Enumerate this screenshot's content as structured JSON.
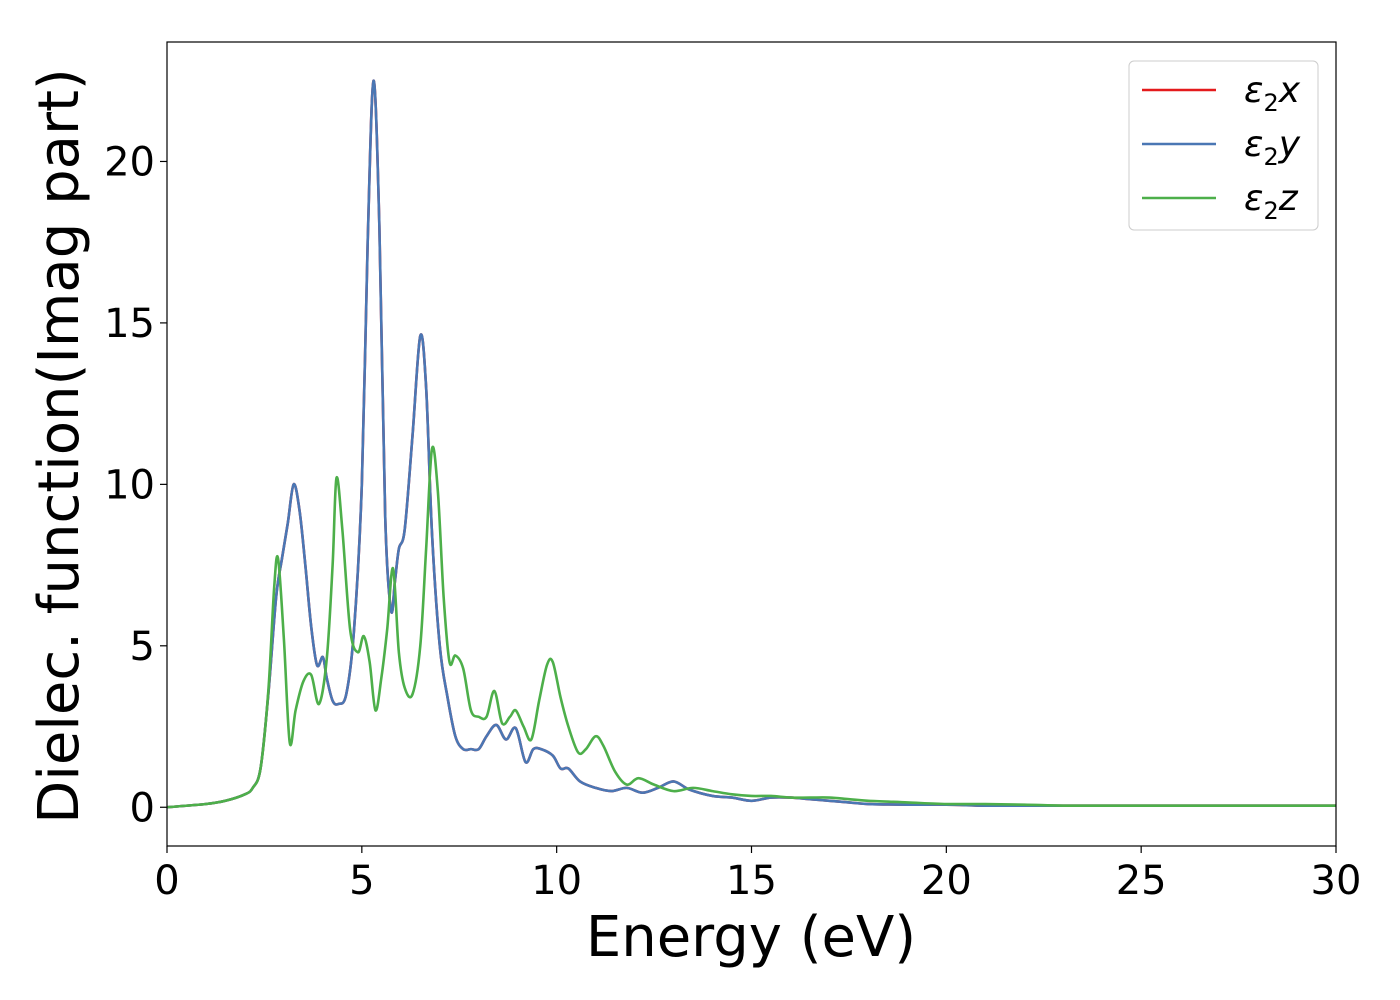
{
  "chart_data": {
    "type": "line",
    "xlabel": "Energy (eV)",
    "ylabel": "Dielec. function(Imag part)",
    "xlim": [
      0,
      30
    ],
    "ylim": [
      -1.2,
      23.7
    ],
    "xticks": [
      0,
      5,
      10,
      15,
      20,
      25,
      30
    ],
    "yticks": [
      0,
      5,
      10,
      15,
      20
    ],
    "grid": false,
    "legend_position": "top-right",
    "series": [
      {
        "name": "ε2x",
        "legend_symbol": "ε",
        "legend_subscript": "2",
        "legend_suffix": "x",
        "color": "#e41a1c",
        "x": [
          0,
          1,
          1.5,
          2,
          2.2,
          2.4,
          2.6,
          2.8,
          2.95,
          3.1,
          3.25,
          3.4,
          3.55,
          3.7,
          3.85,
          4.0,
          4.1,
          4.25,
          4.4,
          4.6,
          4.8,
          5.0,
          5.15,
          5.3,
          5.45,
          5.6,
          5.75,
          5.85,
          5.95,
          6.1,
          6.3,
          6.5,
          6.65,
          6.8,
          7.0,
          7.2,
          7.4,
          7.6,
          7.8,
          8.0,
          8.2,
          8.45,
          8.7,
          8.95,
          9.2,
          9.4,
          9.6,
          9.9,
          10.1,
          10.3,
          10.6,
          11.0,
          11.4,
          11.8,
          12.2,
          12.6,
          13.0,
          13.4,
          14.0,
          14.5,
          15.0,
          15.5,
          16.0,
          16.5,
          17.0,
          17.5,
          18.0,
          19.0,
          20.0,
          21.0,
          22.0,
          23.0,
          24.0,
          25.0,
          26.0,
          27.0,
          28.0,
          29.0,
          30.0
        ],
        "y": [
          0.0,
          0.1,
          0.2,
          0.4,
          0.6,
          1.2,
          3.5,
          6.5,
          7.7,
          8.8,
          10.0,
          9.2,
          7.5,
          5.6,
          4.4,
          4.65,
          4.0,
          3.3,
          3.2,
          3.5,
          5.5,
          10.0,
          17.5,
          22.5,
          18.0,
          9.0,
          6.1,
          7.0,
          8.0,
          8.6,
          11.5,
          14.6,
          13.0,
          8.5,
          5.0,
          3.4,
          2.2,
          1.8,
          1.8,
          1.8,
          2.2,
          2.55,
          2.1,
          2.45,
          1.4,
          1.8,
          1.8,
          1.6,
          1.2,
          1.2,
          0.8,
          0.6,
          0.5,
          0.6,
          0.45,
          0.6,
          0.8,
          0.55,
          0.35,
          0.3,
          0.2,
          0.3,
          0.3,
          0.25,
          0.2,
          0.15,
          0.1,
          0.08,
          0.08,
          0.05,
          0.05,
          0.05,
          0.05,
          0.05,
          0.05,
          0.05,
          0.05,
          0.05,
          0.05
        ]
      },
      {
        "name": "ε2y",
        "legend_symbol": "ε",
        "legend_subscript": "2",
        "legend_suffix": "y",
        "color": "#4a77b4",
        "x": [
          0,
          1,
          1.5,
          2,
          2.2,
          2.4,
          2.6,
          2.8,
          2.95,
          3.1,
          3.25,
          3.4,
          3.55,
          3.7,
          3.85,
          4.0,
          4.1,
          4.25,
          4.4,
          4.6,
          4.8,
          5.0,
          5.15,
          5.3,
          5.45,
          5.6,
          5.75,
          5.85,
          5.95,
          6.1,
          6.3,
          6.5,
          6.65,
          6.8,
          7.0,
          7.2,
          7.4,
          7.6,
          7.8,
          8.0,
          8.2,
          8.45,
          8.7,
          8.95,
          9.2,
          9.4,
          9.6,
          9.9,
          10.1,
          10.3,
          10.6,
          11.0,
          11.4,
          11.8,
          12.2,
          12.6,
          13.0,
          13.4,
          14.0,
          14.5,
          15.0,
          15.5,
          16.0,
          16.5,
          17.0,
          17.5,
          18.0,
          19.0,
          20.0,
          21.0,
          22.0,
          23.0,
          24.0,
          25.0,
          26.0,
          27.0,
          28.0,
          29.0,
          30.0
        ],
        "y": [
          0.0,
          0.1,
          0.2,
          0.4,
          0.6,
          1.2,
          3.5,
          6.5,
          7.7,
          8.8,
          10.0,
          9.2,
          7.5,
          5.6,
          4.4,
          4.65,
          4.0,
          3.3,
          3.2,
          3.5,
          5.5,
          10.0,
          17.5,
          22.5,
          18.0,
          9.0,
          6.1,
          7.0,
          8.0,
          8.6,
          11.5,
          14.6,
          13.0,
          8.5,
          5.0,
          3.4,
          2.2,
          1.8,
          1.8,
          1.8,
          2.2,
          2.55,
          2.1,
          2.45,
          1.4,
          1.8,
          1.8,
          1.6,
          1.2,
          1.2,
          0.8,
          0.6,
          0.5,
          0.6,
          0.45,
          0.6,
          0.8,
          0.55,
          0.35,
          0.3,
          0.2,
          0.3,
          0.3,
          0.25,
          0.2,
          0.15,
          0.1,
          0.08,
          0.08,
          0.05,
          0.05,
          0.05,
          0.05,
          0.05,
          0.05,
          0.05,
          0.05,
          0.05,
          0.05
        ]
      },
      {
        "name": "ε2z",
        "legend_symbol": "ε",
        "legend_subscript": "2",
        "legend_suffix": "z",
        "color": "#4daf4a",
        "x": [
          0,
          1,
          1.5,
          2,
          2.2,
          2.4,
          2.6,
          2.75,
          2.85,
          3.0,
          3.15,
          3.3,
          3.5,
          3.7,
          3.9,
          4.1,
          4.25,
          4.35,
          4.5,
          4.7,
          4.9,
          5.05,
          5.2,
          5.35,
          5.5,
          5.65,
          5.8,
          5.95,
          6.1,
          6.3,
          6.5,
          6.65,
          6.8,
          6.95,
          7.1,
          7.25,
          7.4,
          7.6,
          7.8,
          8.0,
          8.2,
          8.4,
          8.6,
          8.8,
          8.95,
          9.15,
          9.35,
          9.55,
          9.75,
          9.9,
          10.1,
          10.3,
          10.55,
          10.75,
          11.0,
          11.2,
          11.5,
          11.8,
          12.1,
          12.5,
          13.0,
          13.5,
          14.0,
          14.5,
          15.0,
          15.5,
          16.0,
          16.5,
          17.0,
          17.5,
          18.0,
          19.0,
          20.0,
          21.0,
          22.0,
          23.0,
          24.0,
          25.0,
          26.0,
          27.0,
          28.0,
          29.0,
          30.0
        ],
        "y": [
          0.0,
          0.1,
          0.2,
          0.4,
          0.6,
          1.2,
          3.6,
          6.8,
          7.7,
          5.2,
          2.0,
          3.0,
          3.9,
          4.1,
          3.2,
          4.6,
          7.5,
          10.2,
          8.6,
          5.5,
          4.8,
          5.3,
          4.5,
          3.0,
          4.0,
          5.5,
          7.4,
          4.8,
          3.7,
          3.5,
          5.0,
          8.0,
          11.1,
          9.8,
          6.5,
          4.5,
          4.7,
          4.3,
          3.0,
          2.8,
          2.8,
          3.6,
          2.6,
          2.8,
          3.0,
          2.5,
          2.1,
          3.3,
          4.4,
          4.5,
          3.4,
          2.5,
          1.7,
          1.8,
          2.2,
          1.9,
          1.1,
          0.7,
          0.9,
          0.7,
          0.5,
          0.6,
          0.5,
          0.4,
          0.35,
          0.35,
          0.3,
          0.3,
          0.3,
          0.25,
          0.2,
          0.15,
          0.1,
          0.1,
          0.08,
          0.05,
          0.05,
          0.05,
          0.05,
          0.05,
          0.05,
          0.05,
          0.05
        ]
      }
    ]
  }
}
